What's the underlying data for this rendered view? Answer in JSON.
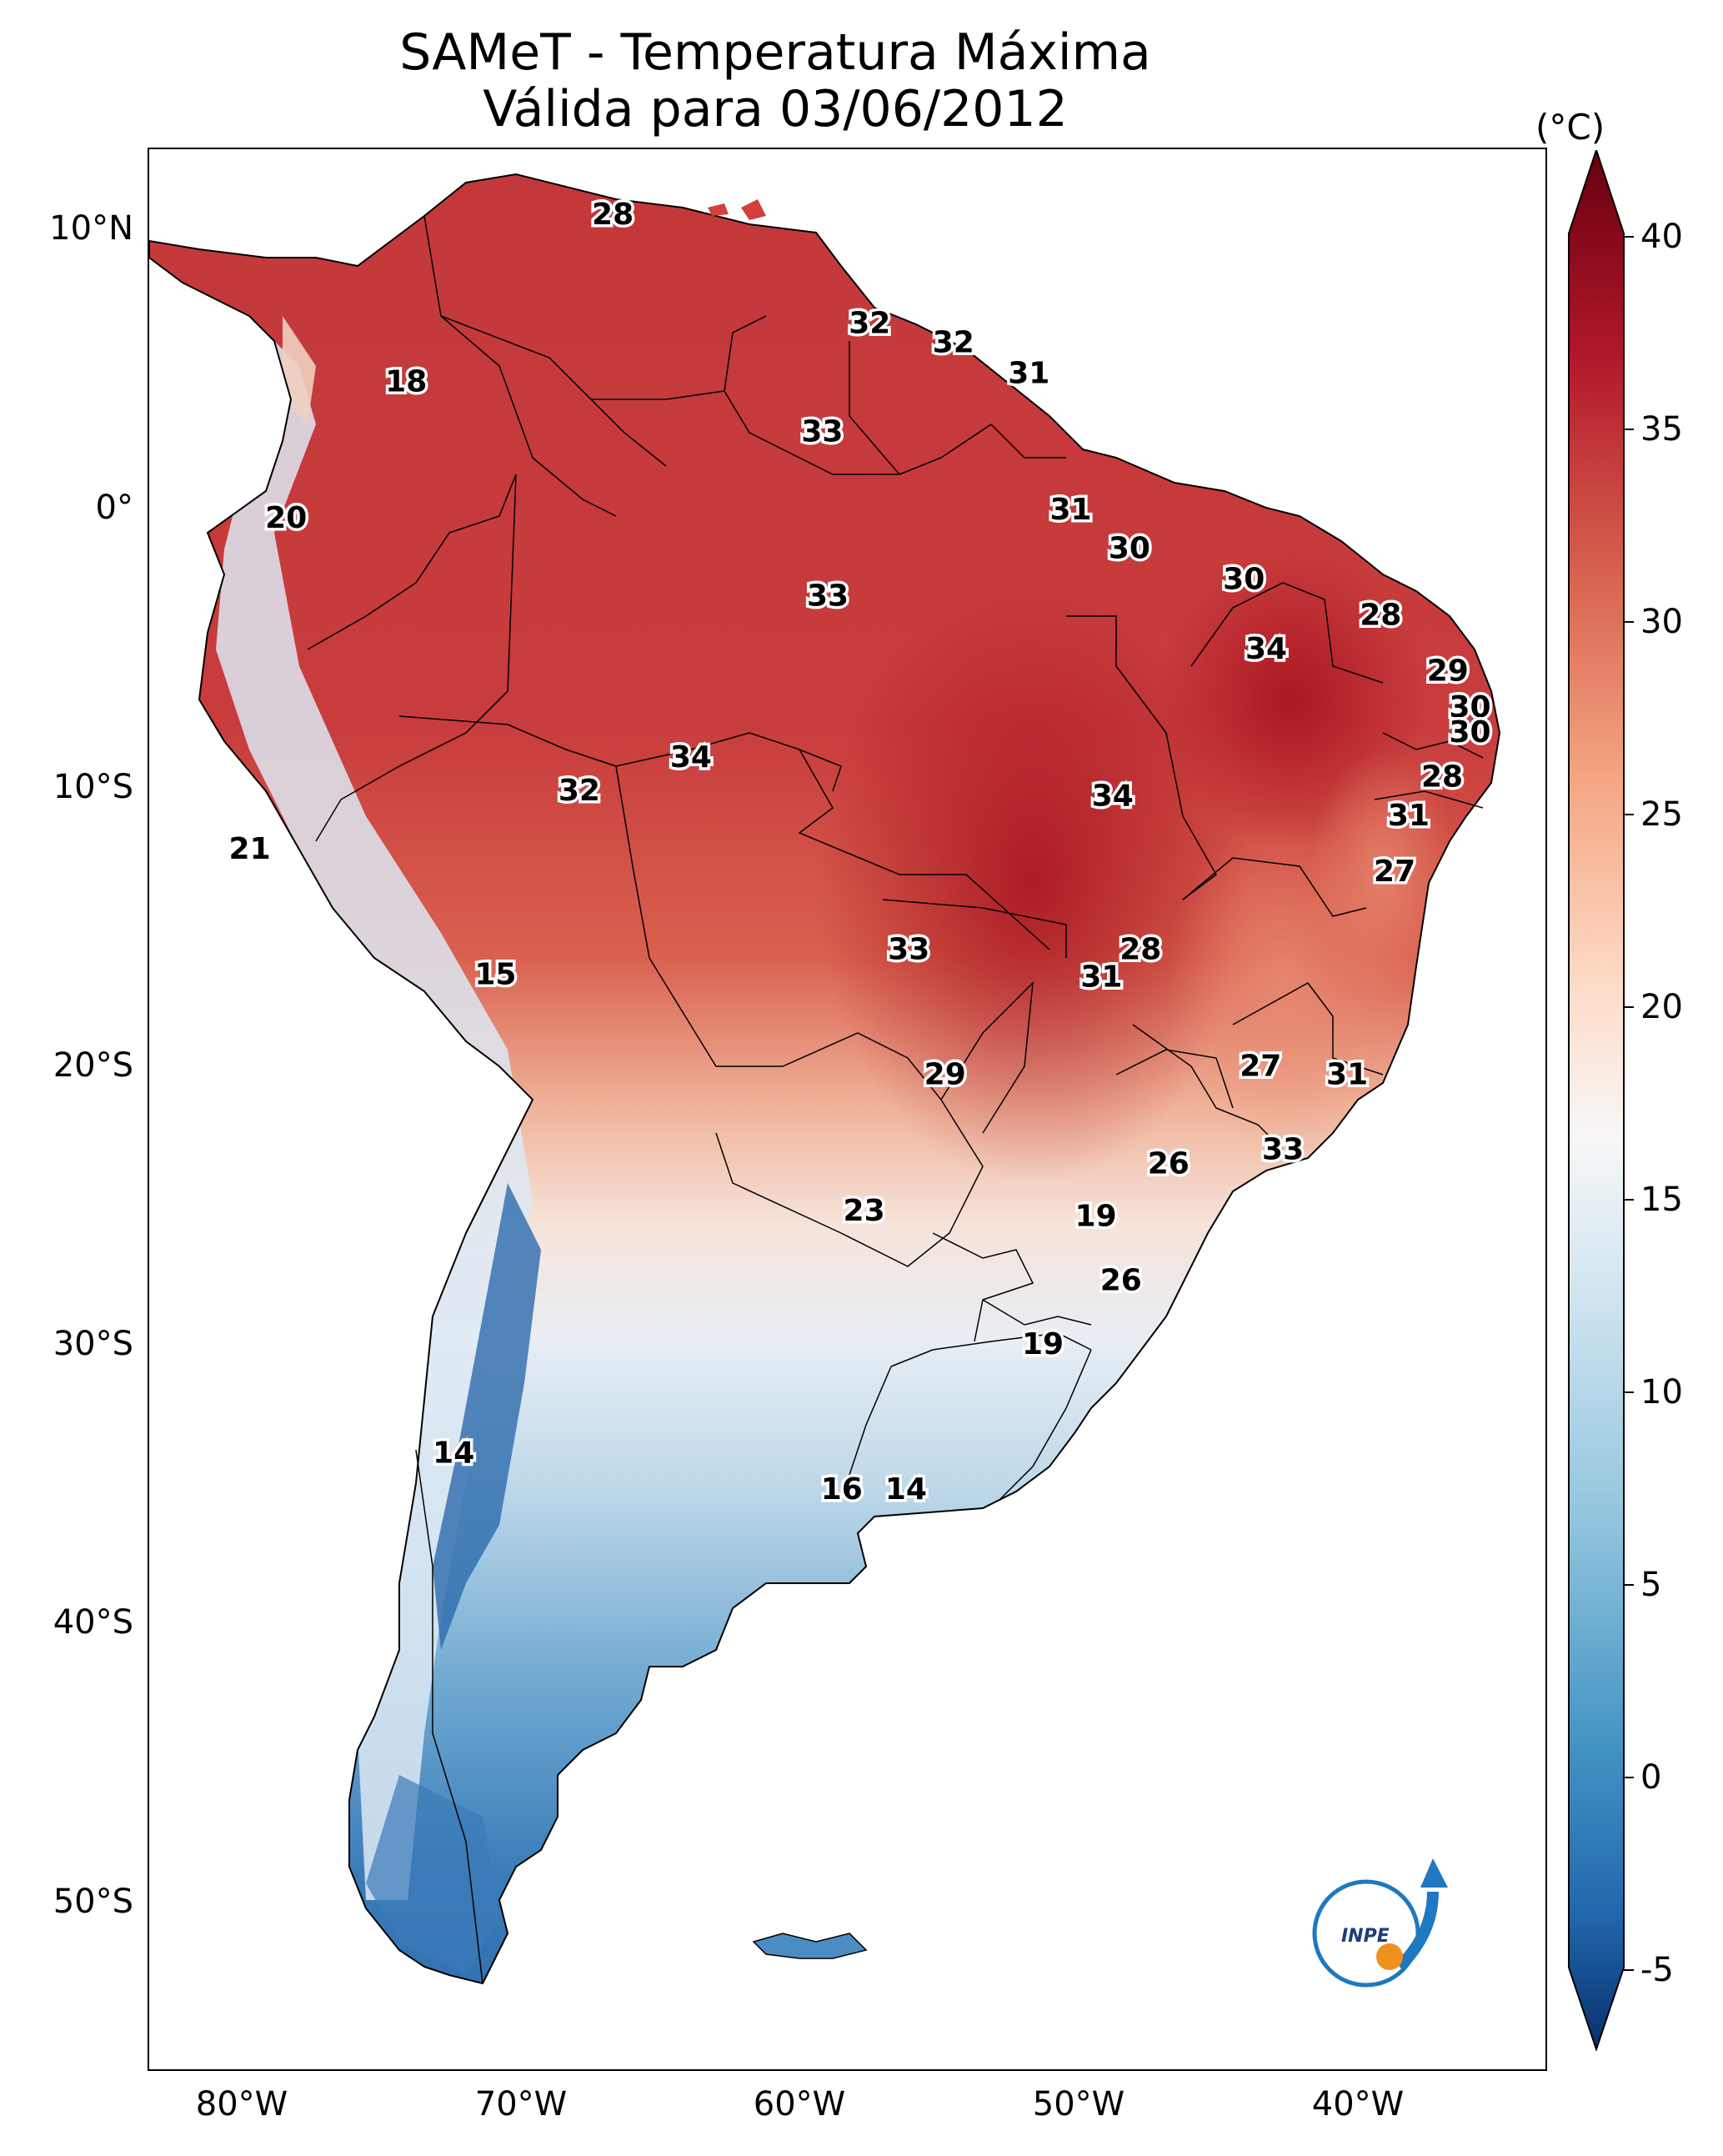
{
  "title": {
    "line1": "SAMeT - Temperatura Máxima",
    "line2": "Válida para 03/06/2012"
  },
  "axes": {
    "lat_labels": [
      "10°N",
      "0°",
      "10°S",
      "20°S",
      "30°S",
      "40°S",
      "50°S"
    ],
    "lon_labels": [
      "80°W",
      "70°W",
      "60°W",
      "50°W",
      "40°W"
    ]
  },
  "colorbar": {
    "unit": "(°C)",
    "ticks": [
      "40",
      "35",
      "30",
      "25",
      "20",
      "15",
      "10",
      "5",
      "0",
      "-5"
    ],
    "range": [
      -5,
      40
    ],
    "colormap": "RdBu_r",
    "colors": {
      "cold": "#08306b",
      "mid": "#f7f7f7",
      "hot": "#67000d"
    }
  },
  "logo": {
    "text": "INPE"
  },
  "map_data": {
    "projection": "PlateCarree",
    "extent": {
      "lon": [
        -83,
        -33
      ],
      "lat": [
        -56,
        13
      ]
    },
    "isotherm_labels": [
      {
        "value": "28",
        "lon": -66.4,
        "lat": 10.6
      },
      {
        "value": "32",
        "lon": -57.2,
        "lat": 6.7
      },
      {
        "value": "32",
        "lon": -54.2,
        "lat": 6.0
      },
      {
        "value": "31",
        "lon": -51.5,
        "lat": 4.9
      },
      {
        "value": "18",
        "lon": -73.8,
        "lat": 4.6
      },
      {
        "value": "33",
        "lon": -58.9,
        "lat": 2.8
      },
      {
        "value": "31",
        "lon": -50.0,
        "lat": 0.0
      },
      {
        "value": "20",
        "lon": -78.1,
        "lat": -0.3
      },
      {
        "value": "30",
        "lon": -47.9,
        "lat": -1.4
      },
      {
        "value": "30",
        "lon": -43.8,
        "lat": -2.5
      },
      {
        "value": "33",
        "lon": -58.7,
        "lat": -3.1
      },
      {
        "value": "28",
        "lon": -38.9,
        "lat": -3.8
      },
      {
        "value": "34",
        "lon": -43.0,
        "lat": -5.0
      },
      {
        "value": "29",
        "lon": -36.5,
        "lat": -5.8
      },
      {
        "value": "30",
        "lon": -35.7,
        "lat": -7.1
      },
      {
        "value": "30",
        "lon": -35.7,
        "lat": -8.0
      },
      {
        "value": "34",
        "lon": -63.6,
        "lat": -8.9
      },
      {
        "value": "28",
        "lon": -36.7,
        "lat": -9.6
      },
      {
        "value": "34",
        "lon": -48.5,
        "lat": -10.3
      },
      {
        "value": "32",
        "lon": -67.6,
        "lat": -10.1
      },
      {
        "value": "31",
        "lon": -37.9,
        "lat": -11.0
      },
      {
        "value": "21",
        "lon": -79.4,
        "lat": -12.2
      },
      {
        "value": "27",
        "lon": -38.4,
        "lat": -13.0
      },
      {
        "value": "28",
        "lon": -47.5,
        "lat": -15.8
      },
      {
        "value": "33",
        "lon": -55.8,
        "lat": -15.8
      },
      {
        "value": "15",
        "lon": -70.6,
        "lat": -16.7
      },
      {
        "value": "31",
        "lon": -48.9,
        "lat": -16.8
      },
      {
        "value": "27",
        "lon": -43.2,
        "lat": -20.0
      },
      {
        "value": "29",
        "lon": -54.5,
        "lat": -20.3
      },
      {
        "value": "31",
        "lon": -40.1,
        "lat": -20.3
      },
      {
        "value": "33",
        "lon": -42.4,
        "lat": -23.0
      },
      {
        "value": "26",
        "lon": -46.5,
        "lat": -23.5
      },
      {
        "value": "23",
        "lon": -57.4,
        "lat": -25.2
      },
      {
        "value": "19",
        "lon": -49.1,
        "lat": -25.4
      },
      {
        "value": "26",
        "lon": -48.2,
        "lat": -27.7
      },
      {
        "value": "19",
        "lon": -51.0,
        "lat": -30.0
      },
      {
        "value": "14",
        "lon": -72.1,
        "lat": -33.9
      },
      {
        "value": "16",
        "lon": -58.2,
        "lat": -35.2
      },
      {
        "value": "14",
        "lon": -55.9,
        "lat": -35.2
      }
    ]
  }
}
